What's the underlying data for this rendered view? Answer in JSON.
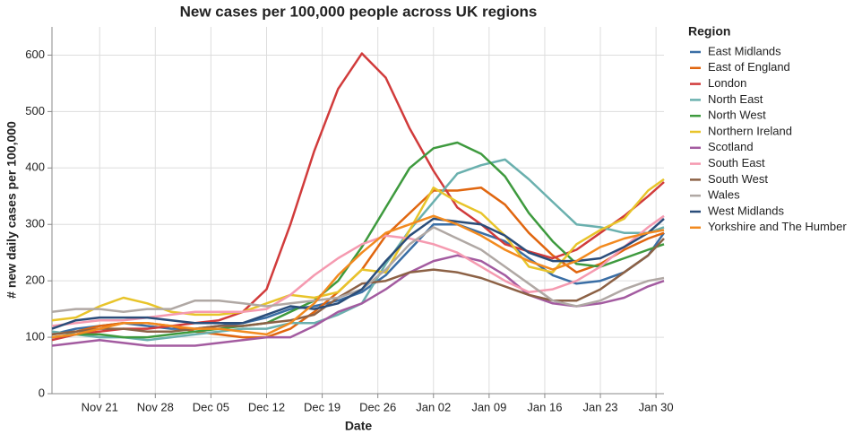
{
  "chart_data": {
    "type": "line",
    "title": "New cases per 100,000 people across UK regions",
    "x_label": "Date",
    "y_label": "# new daily cases per 100,000",
    "legend_title": "Region",
    "legend": "right",
    "grid": true,
    "x": [
      "Nov 15",
      "Nov 18",
      "Nov 21",
      "Nov 24",
      "Nov 27",
      "Nov 30",
      "Dec 03",
      "Dec 06",
      "Dec 09",
      "Dec 12",
      "Dec 15",
      "Dec 18",
      "Dec 21",
      "Dec 24",
      "Dec 27",
      "Dec 30",
      "Jan 02",
      "Jan 05",
      "Jan 08",
      "Jan 11",
      "Jan 14",
      "Jan 17",
      "Jan 20",
      "Jan 23",
      "Jan 26",
      "Jan 29",
      "Jan 31"
    ],
    "xlim": [
      "Nov 15",
      "Jan 31"
    ],
    "xticks": [
      "Nov 21",
      "Nov 28",
      "Dec 05",
      "Dec 12",
      "Dec 19",
      "Dec 26",
      "Jan 02",
      "Jan 09",
      "Jan 16",
      "Jan 23",
      "Jan 30"
    ],
    "ylim": [
      0,
      650
    ],
    "yticks": [
      0,
      100,
      200,
      300,
      400,
      500,
      600
    ],
    "series": [
      {
        "name": "East Midlands",
        "color": "#3a6ea5",
        "values": [
          105,
          115,
          120,
          125,
          120,
          115,
          115,
          120,
          125,
          135,
          150,
          155,
          165,
          180,
          210,
          255,
          300,
          300,
          285,
          270,
          240,
          210,
          195,
          200,
          215,
          245,
          285
        ]
      },
      {
        "name": "East of England",
        "color": "#e0660f",
        "values": [
          105,
          110,
          120,
          125,
          125,
          120,
          110,
          105,
          100,
          100,
          115,
          145,
          180,
          220,
          280,
          320,
          360,
          360,
          365,
          335,
          285,
          245,
          215,
          230,
          255,
          275,
          285
        ]
      },
      {
        "name": "London",
        "color": "#d13b3b",
        "values": [
          95,
          105,
          110,
          115,
          115,
          120,
          125,
          130,
          145,
          185,
          300,
          430,
          540,
          603,
          560,
          470,
          395,
          330,
          300,
          265,
          252,
          240,
          255,
          285,
          315,
          350,
          375
        ]
      },
      {
        "name": "North East",
        "color": "#6ab0ae",
        "values": [
          110,
          105,
          100,
          100,
          95,
          100,
          105,
          110,
          115,
          115,
          125,
          125,
          140,
          160,
          230,
          290,
          340,
          390,
          405,
          415,
          380,
          340,
          300,
          295,
          285,
          285,
          295
        ]
      },
      {
        "name": "North West",
        "color": "#3e9a3e",
        "values": [
          100,
          105,
          105,
          100,
          100,
          105,
          110,
          115,
          120,
          125,
          145,
          165,
          200,
          260,
          330,
          400,
          435,
          445,
          425,
          385,
          320,
          270,
          230,
          225,
          240,
          255,
          265
        ]
      },
      {
        "name": "Northern Ireland",
        "color": "#e8c42a",
        "values": [
          130,
          135,
          155,
          170,
          160,
          145,
          140,
          140,
          145,
          160,
          175,
          170,
          180,
          220,
          215,
          290,
          365,
          340,
          320,
          280,
          225,
          215,
          265,
          290,
          310,
          360,
          380
        ]
      },
      {
        "name": "Scotland",
        "color": "#a35ba0",
        "values": [
          85,
          90,
          95,
          90,
          85,
          85,
          85,
          90,
          95,
          100,
          100,
          120,
          145,
          160,
          185,
          215,
          235,
          245,
          235,
          210,
          175,
          160,
          155,
          160,
          170,
          190,
          200
        ]
      },
      {
        "name": "South East",
        "color": "#f59ab0",
        "values": [
          120,
          125,
          130,
          130,
          135,
          140,
          145,
          145,
          145,
          150,
          175,
          210,
          240,
          265,
          280,
          275,
          265,
          250,
          225,
          200,
          180,
          185,
          200,
          225,
          260,
          295,
          315
        ]
      },
      {
        "name": "South West",
        "color": "#8c6145",
        "values": [
          105,
          110,
          115,
          115,
          110,
          110,
          115,
          120,
          120,
          125,
          130,
          140,
          170,
          195,
          200,
          215,
          220,
          215,
          205,
          190,
          175,
          165,
          165,
          185,
          215,
          245,
          275
        ]
      },
      {
        "name": "Wales",
        "color": "#b0a8a4",
        "values": [
          145,
          150,
          150,
          145,
          150,
          150,
          165,
          165,
          160,
          155,
          160,
          165,
          170,
          185,
          220,
          265,
          295,
          275,
          255,
          225,
          195,
          165,
          155,
          165,
          185,
          200,
          205
        ]
      },
      {
        "name": "West Midlands",
        "color": "#2a4d7a",
        "values": [
          115,
          130,
          135,
          135,
          135,
          130,
          125,
          125,
          125,
          140,
          155,
          150,
          160,
          185,
          235,
          280,
          310,
          305,
          300,
          280,
          250,
          235,
          235,
          240,
          260,
          285,
          310
        ]
      },
      {
        "name": "Yorkshire and The Humber",
        "color": "#f28a1f",
        "values": [
          100,
          105,
          115,
          125,
          125,
          120,
          115,
          115,
          110,
          105,
          125,
          160,
          210,
          250,
          285,
          300,
          315,
          300,
          280,
          255,
          235,
          220,
          235,
          260,
          275,
          285,
          290
        ]
      }
    ]
  }
}
